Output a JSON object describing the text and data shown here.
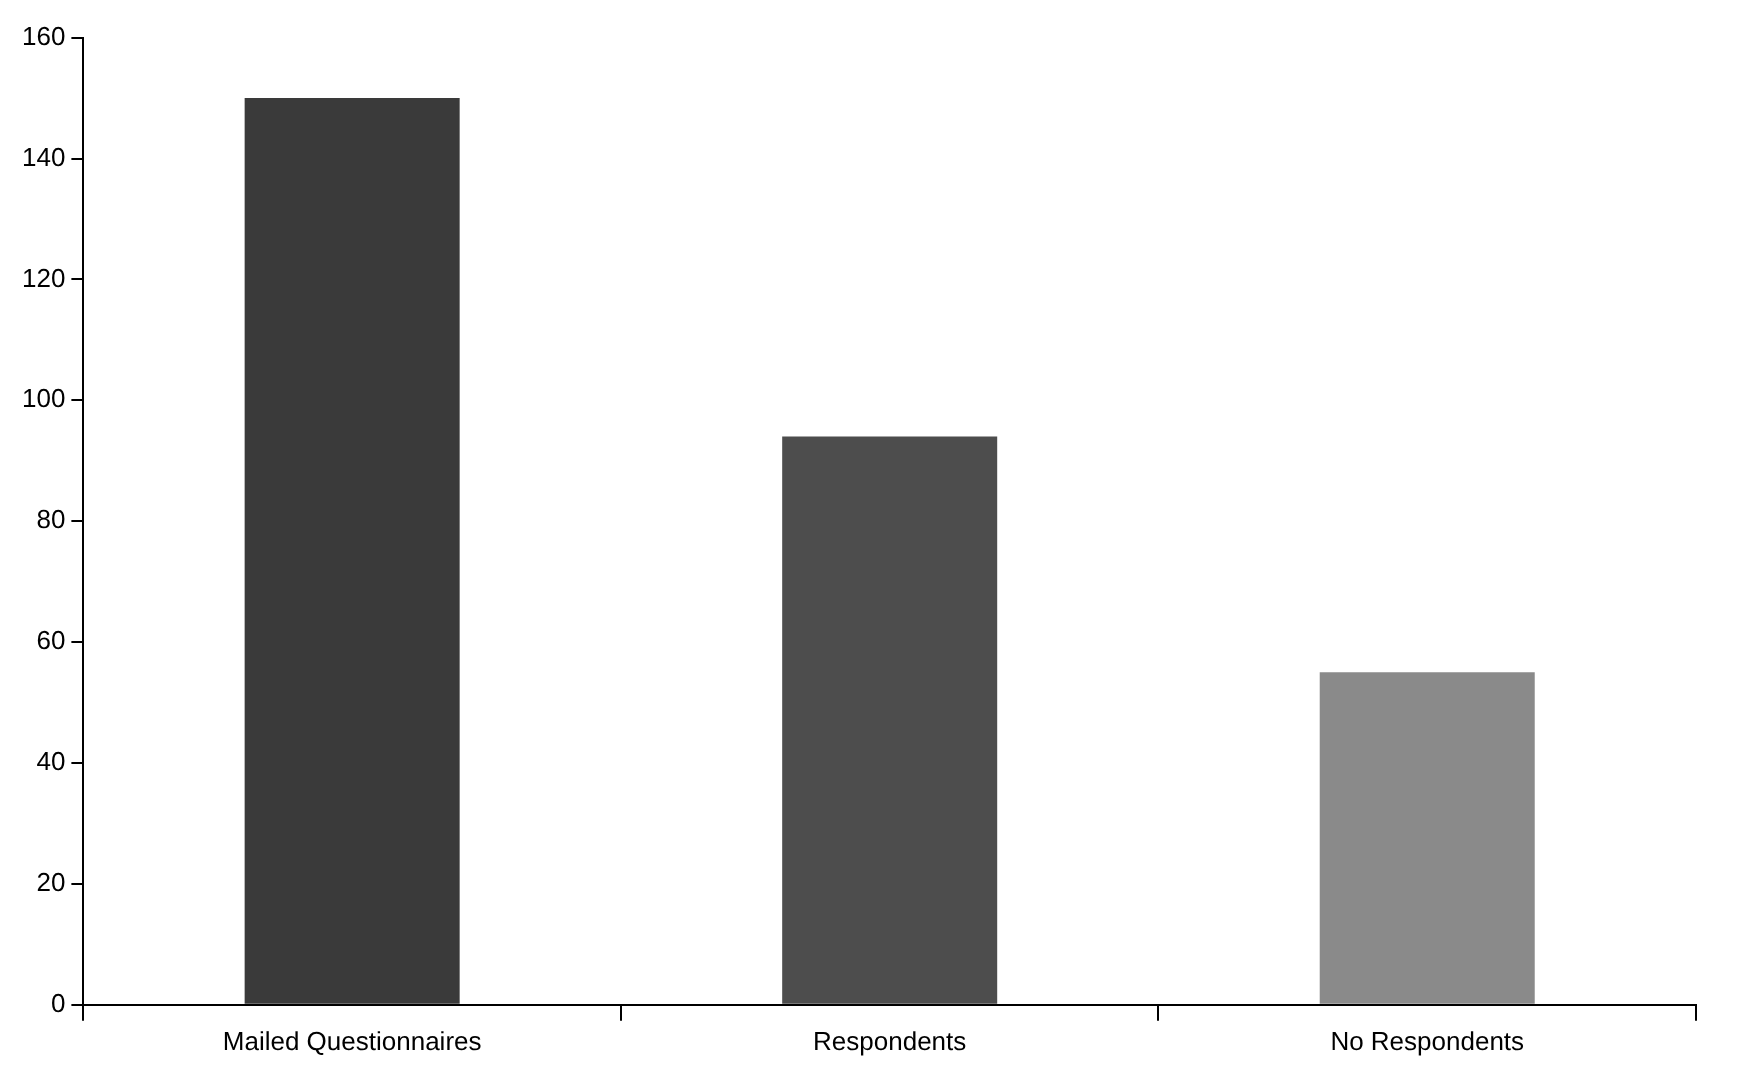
{
  "chart_data": {
    "type": "bar",
    "categories": [
      "Mailed Questionnaires",
      "Respondents",
      "No Respondents"
    ],
    "values": [
      150,
      94,
      55
    ],
    "colors": [
      "#3a3a3a",
      "#4d4d4d",
      "#8a8a8a"
    ],
    "ylim": [
      0,
      160
    ],
    "yticks": [
      0,
      20,
      40,
      60,
      80,
      100,
      120,
      140,
      160
    ],
    "grid": false,
    "legend": false
  }
}
